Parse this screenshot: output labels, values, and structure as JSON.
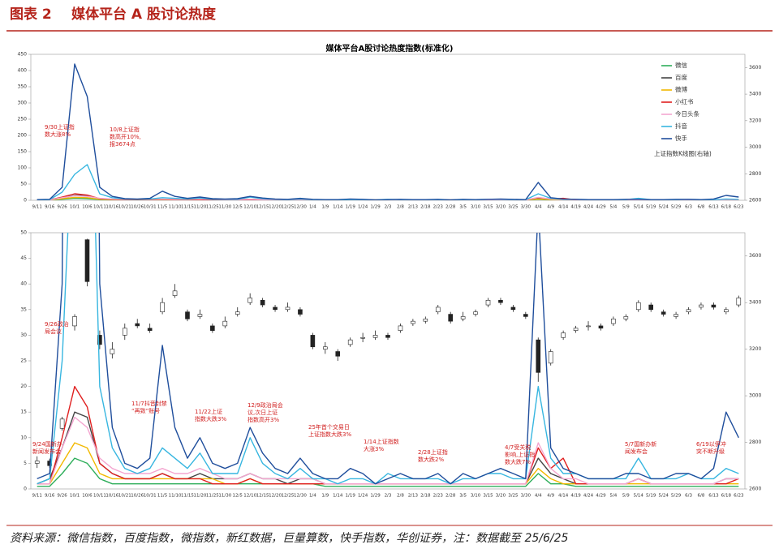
{
  "header": {
    "label": "图表 2",
    "title": "媒体平台 A 股讨论热度"
  },
  "footer": "资料来源：微信指数，百度指数，微指数，新红数据，巨量算数，快手指数，华创证券，注：数据截至 25/6/25",
  "chart_data": {
    "type": "line",
    "title": "媒体平台A股讨论热度指数(标准化)",
    "categories": [
      "9/11",
      "9/16",
      "9/26",
      "10/1",
      "10/6",
      "10/11",
      "10/16",
      "10/21",
      "10/26",
      "10/31",
      "11/5",
      "11/10",
      "11/15",
      "11/20",
      "11/25",
      "11/30",
      "12/5",
      "12/10",
      "12/15",
      "12/20",
      "12/25",
      "12/30",
      "1/4",
      "1/9",
      "1/14",
      "1/19",
      "1/24",
      "1/29",
      "2/3",
      "2/8",
      "2/13",
      "2/18",
      "2/23",
      "2/28",
      "3/5",
      "3/10",
      "3/15",
      "3/20",
      "3/25",
      "3/30",
      "4/4",
      "4/9",
      "4/14",
      "4/19",
      "4/24",
      "4/29",
      "5/4",
      "5/9",
      "5/14",
      "5/19",
      "5/24",
      "5/29",
      "6/3",
      "6/8",
      "6/13",
      "6/18",
      "6/23"
    ],
    "series": [
      {
        "name": "微信",
        "color": "#2eae5a",
        "values": [
          0.5,
          0.5,
          3,
          6,
          5,
          2,
          1,
          1,
          1,
          1,
          1,
          1,
          1,
          1,
          1,
          1,
          1,
          1,
          1,
          1,
          1,
          1,
          1,
          0.5,
          0.5,
          0.5,
          0.5,
          0.5,
          0.5,
          0.5,
          0.5,
          0.5,
          0.5,
          0.5,
          0.5,
          0.5,
          0.5,
          0.5,
          0.5,
          0.5,
          3,
          1,
          1,
          0.5,
          0.5,
          0.5,
          0.5,
          0.5,
          0.5,
          0.5,
          0.5,
          0.5,
          0.5,
          0.5,
          0.5,
          0.5,
          0.5
        ]
      },
      {
        "name": "百度",
        "color": "#444444",
        "values": [
          1,
          2,
          8,
          15,
          14,
          5,
          3,
          2,
          2,
          2,
          3,
          2,
          2,
          3,
          2,
          2,
          2,
          3,
          2,
          2,
          1,
          2,
          2,
          1,
          1,
          1,
          1,
          1,
          1,
          1,
          1,
          1,
          1,
          1,
          1,
          1,
          1,
          1,
          1,
          1,
          6,
          3,
          2,
          1,
          1,
          1,
          1,
          1,
          2,
          1,
          1,
          1,
          1,
          1,
          1,
          2,
          2
        ]
      },
      {
        "name": "微博",
        "color": "#f2b800",
        "values": [
          1,
          1,
          5,
          9,
          8,
          3,
          2,
          2,
          2,
          2,
          2,
          2,
          2,
          2,
          2,
          1,
          1,
          2,
          1,
          1,
          1,
          1,
          1,
          1,
          1,
          1,
          1,
          1,
          1,
          1,
          1,
          1,
          1,
          1,
          1,
          1,
          1,
          1,
          1,
          1,
          4,
          2,
          1,
          1,
          1,
          1,
          1,
          1,
          1,
          1,
          1,
          1,
          1,
          1,
          1,
          1,
          1
        ]
      },
      {
        "name": "小红书",
        "color": "#e02020",
        "values": [
          1,
          1,
          10,
          20,
          16,
          5,
          3,
          2,
          2,
          2,
          3,
          2,
          2,
          2,
          1,
          1,
          1,
          2,
          1,
          1,
          1,
          1,
          1,
          1,
          1,
          1,
          1,
          1,
          1,
          1,
          1,
          1,
          1,
          1,
          1,
          1,
          1,
          1,
          1,
          1,
          8,
          4,
          6,
          1,
          1,
          1,
          1,
          1,
          2,
          1,
          1,
          1,
          1,
          1,
          1,
          1,
          2
        ]
      },
      {
        "name": "今日头条",
        "color": "#f4a6d0",
        "values": [
          1,
          1,
          8,
          14,
          12,
          6,
          4,
          3,
          3,
          3,
          4,
          3,
          3,
          4,
          3,
          2,
          2,
          3,
          2,
          2,
          2,
          2,
          2,
          1,
          1,
          1,
          1,
          1,
          1,
          1,
          1,
          1,
          1,
          1,
          1,
          1,
          1,
          1,
          1,
          1,
          9,
          4,
          2,
          2,
          1,
          1,
          1,
          1,
          2,
          1,
          1,
          1,
          1,
          1,
          1,
          2,
          2
        ]
      },
      {
        "name": "抖音",
        "color": "#37b6e0",
        "values": [
          1,
          2,
          25,
          80,
          110,
          20,
          8,
          4,
          3,
          4,
          8,
          6,
          4,
          7,
          3,
          3,
          3,
          10,
          5,
          3,
          2,
          4,
          2,
          2,
          1,
          2,
          2,
          1,
          3,
          2,
          2,
          2,
          2,
          1,
          2,
          2,
          3,
          3,
          2,
          2,
          20,
          6,
          3,
          3,
          2,
          2,
          2,
          2,
          6,
          2,
          2,
          2,
          3,
          2,
          2,
          4,
          3
        ]
      },
      {
        "name": "快手",
        "color": "#1f4e9c",
        "values": [
          2,
          3,
          40,
          420,
          320,
          40,
          12,
          5,
          4,
          6,
          28,
          12,
          6,
          10,
          5,
          4,
          5,
          12,
          7,
          4,
          3,
          6,
          3,
          2,
          2,
          4,
          3,
          1,
          2,
          3,
          2,
          2,
          3,
          1,
          3,
          2,
          3,
          4,
          3,
          2,
          55,
          8,
          4,
          3,
          2,
          2,
          2,
          3,
          3,
          2,
          2,
          3,
          3,
          2,
          4,
          15,
          10
        ]
      }
    ],
    "kline": {
      "name": "上证指数K线图(右轴)",
      "axis": "y2",
      "open": [
        2710,
        2720,
        2860,
        3300,
        3670,
        3260,
        3180,
        3260,
        3310,
        3290,
        3360,
        3430,
        3360,
        3340,
        3300,
        3300,
        3350,
        3400,
        3410,
        3380,
        3370,
        3370,
        3260,
        3200,
        3190,
        3220,
        3250,
        3250,
        3260,
        3280,
        3310,
        3320,
        3360,
        3350,
        3330,
        3350,
        3390,
        3410,
        3380,
        3350,
        3240,
        3140,
        3250,
        3280,
        3300,
        3300,
        3310,
        3330,
        3370,
        3390,
        3360,
        3340,
        3360,
        3380,
        3390,
        3360,
        3390
      ],
      "high": [
        2740,
        2730,
        2910,
        3350,
        3674,
        3280,
        3230,
        3310,
        3330,
        3310,
        3420,
        3480,
        3370,
        3370,
        3310,
        3340,
        3380,
        3440,
        3420,
        3390,
        3400,
        3380,
        3270,
        3230,
        3200,
        3250,
        3270,
        3280,
        3270,
        3310,
        3330,
        3340,
        3390,
        3360,
        3360,
        3370,
        3420,
        3420,
        3390,
        3360,
        3250,
        3200,
        3280,
        3300,
        3320,
        3310,
        3340,
        3350,
        3410,
        3400,
        3370,
        3360,
        3380,
        3400,
        3400,
        3380,
        3430
      ],
      "low": [
        2690,
        2690,
        2850,
        3280,
        3470,
        3200,
        3160,
        3240,
        3290,
        3270,
        3350,
        3420,
        3320,
        3330,
        3270,
        3290,
        3340,
        3390,
        3380,
        3360,
        3360,
        3340,
        3200,
        3180,
        3150,
        3210,
        3230,
        3240,
        3240,
        3270,
        3300,
        3310,
        3350,
        3310,
        3320,
        3340,
        3380,
        3390,
        3360,
        3330,
        3060,
        3130,
        3240,
        3270,
        3280,
        3280,
        3300,
        3320,
        3360,
        3360,
        3340,
        3330,
        3350,
        3370,
        3370,
        3350,
        3380
      ],
      "close": [
        2720,
        2700,
        2900,
        3340,
        3490,
        3220,
        3200,
        3290,
        3300,
        3280,
        3400,
        3450,
        3330,
        3350,
        3280,
        3320,
        3360,
        3420,
        3390,
        3370,
        3380,
        3350,
        3210,
        3210,
        3170,
        3240,
        3250,
        3260,
        3250,
        3300,
        3320,
        3330,
        3380,
        3320,
        3340,
        3360,
        3410,
        3400,
        3370,
        3340,
        3100,
        3190,
        3270,
        3290,
        3300,
        3290,
        3330,
        3340,
        3400,
        3370,
        3350,
        3350,
        3370,
        3390,
        3380,
        3370,
        3420
      ]
    },
    "panels": [
      {
        "ylim": [
          0,
          450
        ],
        "yticks": [
          0,
          50,
          100,
          150,
          200,
          250,
          300,
          350,
          400,
          450
        ],
        "y2lim": [
          2600,
          3700
        ],
        "y2ticks": [
          2600,
          2800,
          3000,
          3200,
          3400,
          3600
        ],
        "kline": false,
        "legend": "upper right",
        "annotations": [
          [
            "9/30上证指",
            "数大涨8%"
          ],
          [
            "10/8上证指",
            "数高开10%,",
            "报3674点"
          ]
        ]
      },
      {
        "ylim": [
          0,
          50
        ],
        "yticks": [
          0,
          5,
          10,
          15,
          20,
          25,
          30,
          35,
          40,
          45,
          50
        ],
        "y2lim": [
          2600,
          3700
        ],
        "y2ticks": [
          2600,
          2800,
          3000,
          3200,
          3400,
          3600
        ],
        "kline": true,
        "annotations": [
          [
            "9/24国新办",
            "新闻发布会"
          ],
          [
            "9/26政治",
            "局会议"
          ],
          [
            "11/7抖音封禁",
            "“再致”账号"
          ],
          [
            "11/22上证",
            "指数大跌3%"
          ],
          [
            "12/9政治局会",
            "议,次日上证",
            "指数高开3%"
          ],
          [
            "25年首个交易日",
            "上证指数大跌3%"
          ],
          [
            "1/14上证指数",
            "大涨3%"
          ],
          [
            "2/28上证指",
            "数大跌2%"
          ],
          [
            "4/7受关税",
            "影响,上证指",
            "数大跌7%"
          ],
          [
            "5/7国新办新",
            "闻发布会"
          ],
          [
            "6/19以伊冲",
            "突不断升级"
          ]
        ]
      }
    ]
  }
}
